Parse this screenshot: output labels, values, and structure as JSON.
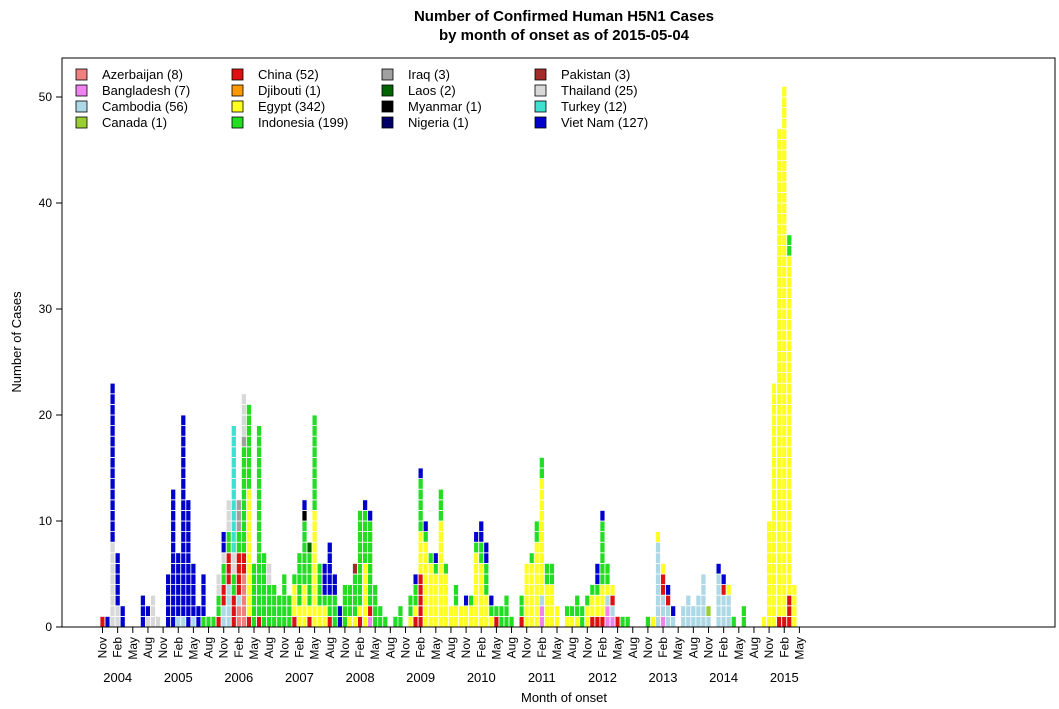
{
  "chart_data": {
    "type": "bar",
    "stacked": true,
    "title_line1": "Number of Confirmed Human H5N1 Cases",
    "title_line2": "by month of onset as of 2015-05-04",
    "xlabel": "Month of onset",
    "ylabel": "Number of Cases",
    "ylim": [
      0,
      55
    ],
    "yticks": [
      0,
      10,
      20,
      30,
      40,
      50
    ],
    "x_start": "2003-11",
    "month_tick_labels": [
      "Nov",
      "Feb",
      "May",
      "Aug"
    ],
    "years": [
      "2004",
      "2005",
      "2006",
      "2007",
      "2008",
      "2009",
      "2010",
      "2011",
      "2012",
      "2013",
      "2014",
      "2015"
    ],
    "grid": false,
    "legend_position": "top-left",
    "countries": [
      {
        "name": "Azerbaijan (8)",
        "color": "#f08080"
      },
      {
        "name": "Bangladesh (7)",
        "color": "#ee82ee"
      },
      {
        "name": "Cambodia (56)",
        "color": "#add8e6"
      },
      {
        "name": "Canada (1)",
        "color": "#9acd32"
      },
      {
        "name": "China (52)",
        "color": "#dd1111"
      },
      {
        "name": "Djibouti (1)",
        "color": "#ff9900"
      },
      {
        "name": "Egypt (342)",
        "color": "#ffff22"
      },
      {
        "name": "Indonesia (199)",
        "color": "#22dd22"
      },
      {
        "name": "Iraq (3)",
        "color": "#a0a0a0"
      },
      {
        "name": "Laos (2)",
        "color": "#006400"
      },
      {
        "name": "Myanmar (1)",
        "color": "#000000"
      },
      {
        "name": "Nigeria (1)",
        "color": "#000066"
      },
      {
        "name": "Pakistan (3)",
        "color": "#a52a2a"
      },
      {
        "name": "Thailand (25)",
        "color": "#d8d8d8"
      },
      {
        "name": "Turkey (12)",
        "color": "#40e0d0"
      },
      {
        "name": "Viet Nam (127)",
        "color": "#0000cd"
      }
    ],
    "monthly": [
      {
        "month": "2003-11",
        "cases": {
          "China (52)": 1
        }
      },
      {
        "month": "2003-12",
        "cases": {
          "Viet Nam (127)": 1
        }
      },
      {
        "month": "2004-01",
        "cases": {
          "Thailand (25)": 8,
          "Viet Nam (127)": 15
        }
      },
      {
        "month": "2004-02",
        "cases": {
          "Thailand (25)": 2,
          "Viet Nam (127)": 5
        }
      },
      {
        "month": "2004-03",
        "cases": {
          "Viet Nam (127)": 2
        }
      },
      {
        "month": "2004-07",
        "cases": {
          "Viet Nam (127)": 3
        }
      },
      {
        "month": "2004-08",
        "cases": {
          "Thailand (25)": 1,
          "Viet Nam (127)": 1
        }
      },
      {
        "month": "2004-09",
        "cases": {
          "Thailand (25)": 3
        }
      },
      {
        "month": "2004-10",
        "cases": {
          "Thailand (25)": 1
        }
      },
      {
        "month": "2004-12",
        "cases": {
          "Viet Nam (127)": 5
        }
      },
      {
        "month": "2005-01",
        "cases": {
          "Viet Nam (127)": 13
        }
      },
      {
        "month": "2005-02",
        "cases": {
          "Cambodia (56)": 1,
          "Viet Nam (127)": 6
        }
      },
      {
        "month": "2005-03",
        "cases": {
          "Cambodia (56)": 1,
          "Viet Nam (127)": 19
        }
      },
      {
        "month": "2005-04",
        "cases": {
          "Viet Nam (127)": 12
        }
      },
      {
        "month": "2005-05",
        "cases": {
          "Cambodia (56)": 1,
          "Viet Nam (127)": 5
        }
      },
      {
        "month": "2005-06",
        "cases": {
          "Viet Nam (127)": 2
        }
      },
      {
        "month": "2005-07",
        "cases": {
          "Indonesia (199)": 1,
          "Viet Nam (127)": 4
        }
      },
      {
        "month": "2005-08",
        "cases": {
          "Indonesia (199)": 1
        }
      },
      {
        "month": "2005-09",
        "cases": {
          "Indonesia (199)": 1
        }
      },
      {
        "month": "2005-10",
        "cases": {
          "China (52)": 1,
          "Thailand (25)": 2,
          "Indonesia (199)": 2
        }
      },
      {
        "month": "2005-11",
        "cases": {
          "China (52)": 2,
          "Thailand (25)": 1,
          "Indonesia (199)": 2,
          "Cambodia (56)": 2,
          "Viet Nam (127)": 2
        }
      },
      {
        "month": "2005-12",
        "cases": {
          "China (52)": 3,
          "Thailand (25)": 3,
          "Indonesia (199)": 2,
          "Cambodia (56)": 4
        }
      },
      {
        "month": "2006-01",
        "cases": {
          "China (52)": 3,
          "Thailand (25)": 2,
          "Turkey (12)": 12,
          "Indonesia (199)": 2
        }
      },
      {
        "month": "2006-02",
        "cases": {
          "China (52)": 4,
          "Azerbaijan (8)": 2,
          "Iraq (3)": 3,
          "Indonesia (199)": 2,
          "Cambodia (56)": 1
        }
      },
      {
        "month": "2006-03",
        "cases": {
          "China (52)": 2,
          "Azerbaijan (8)": 5,
          "Indonesia (199)": 10,
          "Thailand (25)": 4,
          "Iraq (3)": 1
        }
      },
      {
        "month": "2006-04",
        "cases": {
          "China (52)": 1,
          "Egypt (342)": 12,
          "Indonesia (199)": 8
        }
      },
      {
        "month": "2006-05",
        "cases": {
          "Indonesia (199)": 6
        }
      },
      {
        "month": "2006-06",
        "cases": {
          "China (52)": 1,
          "Indonesia (199)": 18
        }
      },
      {
        "month": "2006-07",
        "cases": {
          "Indonesia (199)": 7
        }
      },
      {
        "month": "2006-08",
        "cases": {
          "Thailand (25)": 2,
          "Indonesia (199)": 4
        }
      },
      {
        "month": "2006-09",
        "cases": {
          "Indonesia (199)": 4
        }
      },
      {
        "month": "2006-10",
        "cases": {
          "Indonesia (199)": 3
        }
      },
      {
        "month": "2006-11",
        "cases": {
          "Indonesia (199)": 5
        }
      },
      {
        "month": "2006-12",
        "cases": {
          "Indonesia (199)": 3
        }
      },
      {
        "month": "2007-01",
        "cases": {
          "China (52)": 1,
          "Egypt (342)": 3,
          "Indonesia (199)": 1
        }
      },
      {
        "month": "2007-02",
        "cases": {
          "Egypt (342)": 2,
          "Indonesia (199)": 5
        }
      },
      {
        "month": "2007-03",
        "cases": {
          "Egypt (342)": 4,
          "Indonesia (199)": 6,
          "Myanmar (1)": 1,
          "Viet Nam (127)": 1
        }
      },
      {
        "month": "2007-04",
        "cases": {
          "China (52)": 1,
          "Laos (2)": 1,
          "Egypt (342)": 1,
          "Indonesia (199)": 5
        }
      },
      {
        "month": "2007-05",
        "cases": {
          "Egypt (342)": 11,
          "Indonesia (199)": 9
        }
      },
      {
        "month": "2007-06",
        "cases": {
          "Egypt (342)": 2,
          "Indonesia (199)": 4
        }
      },
      {
        "month": "2007-07",
        "cases": {
          "Egypt (342)": 2,
          "Indonesia (199)": 1,
          "Viet Nam (127)": 3
        }
      },
      {
        "month": "2007-08",
        "cases": {
          "China (52)": 1,
          "Indonesia (199)": 2,
          "Viet Nam (127)": 5
        }
      },
      {
        "month": "2007-09",
        "cases": {
          "Indonesia (199)": 3,
          "Viet Nam (127)": 2
        }
      },
      {
        "month": "2007-10",
        "cases": {
          "Viet Nam (127)": 2
        }
      },
      {
        "month": "2007-11",
        "cases": {
          "Indonesia (199)": 4
        }
      },
      {
        "month": "2007-12",
        "cases": {
          "Egypt (342)": 1,
          "Indonesia (199)": 3
        }
      },
      {
        "month": "2008-01",
        "cases": {
          "Egypt (342)": 1,
          "Indonesia (199)": 4,
          "Pakistan (3)": 1
        }
      },
      {
        "month": "2008-02",
        "cases": {
          "Egypt (342)": 1,
          "China (52)": 1,
          "Indonesia (199)": 9
        }
      },
      {
        "month": "2008-03",
        "cases": {
          "Egypt (342)": 6,
          "Indonesia (199)": 5,
          "Viet Nam (127)": 1
        }
      },
      {
        "month": "2008-04",
        "cases": {
          "China (52)": 1,
          "Bangladesh (7)": 1,
          "Indonesia (199)": 8,
          "Viet Nam (127)": 1
        }
      },
      {
        "month": "2008-05",
        "cases": {
          "Indonesia (199)": 4
        }
      },
      {
        "month": "2008-06",
        "cases": {
          "Indonesia (199)": 2
        }
      },
      {
        "month": "2008-07",
        "cases": {
          "Indonesia (199)": 1
        }
      },
      {
        "month": "2008-09",
        "cases": {
          "Indonesia (199)": 1
        }
      },
      {
        "month": "2008-10",
        "cases": {
          "Indonesia (199)": 2
        }
      },
      {
        "month": "2008-12",
        "cases": {
          "Egypt (342)": 1,
          "Indonesia (199)": 2
        }
      },
      {
        "month": "2009-01",
        "cases": {
          "China (52)": 1,
          "Egypt (342)": 1,
          "Indonesia (199)": 2,
          "Viet Nam (127)": 1
        }
      },
      {
        "month": "2009-02",
        "cases": {
          "China (52)": 5,
          "Egypt (342)": 4,
          "Indonesia (199)": 5,
          "Viet Nam (127)": 1
        }
      },
      {
        "month": "2009-03",
        "cases": {
          "Egypt (342)": 8,
          "Indonesia (199)": 1,
          "Viet Nam (127)": 1
        }
      },
      {
        "month": "2009-04",
        "cases": {
          "Egypt (342)": 6,
          "Indonesia (199)": 1
        }
      },
      {
        "month": "2009-05",
        "cases": {
          "Egypt (342)": 5,
          "Viet Nam (127)": 1,
          "Indonesia (199)": 1
        }
      },
      {
        "month": "2009-06",
        "cases": {
          "Egypt (342)": 10,
          "Indonesia (199)": 3
        }
      },
      {
        "month": "2009-07",
        "cases": {
          "Egypt (342)": 5,
          "Indonesia (199)": 1
        }
      },
      {
        "month": "2009-08",
        "cases": {
          "Egypt (342)": 2
        }
      },
      {
        "month": "2009-09",
        "cases": {
          "Egypt (342)": 2,
          "Indonesia (199)": 2
        }
      },
      {
        "month": "2009-10",
        "cases": {
          "Egypt (342)": 2
        }
      },
      {
        "month": "2009-11",
        "cases": {
          "Egypt (342)": 2,
          "Viet Nam (127)": 1
        }
      },
      {
        "month": "2009-12",
        "cases": {
          "Egypt (342)": 2,
          "Indonesia (199)": 1
        }
      },
      {
        "month": "2010-01",
        "cases": {
          "Egypt (342)": 7,
          "Indonesia (199)": 1,
          "Viet Nam (127)": 1
        }
      },
      {
        "month": "2010-02",
        "cases": {
          "Egypt (342)": 6,
          "Indonesia (199)": 2,
          "Viet Nam (127)": 2
        }
      },
      {
        "month": "2010-03",
        "cases": {
          "Egypt (342)": 3,
          "Indonesia (199)": 3,
          "Viet Nam (127)": 2
        }
      },
      {
        "month": "2010-04",
        "cases": {
          "Egypt (342)": 1,
          "Indonesia (199)": 1,
          "Viet Nam (127)": 1
        }
      },
      {
        "month": "2010-05",
        "cases": {
          "China (52)": 1,
          "Indonesia (199)": 1
        }
      },
      {
        "month": "2010-06",
        "cases": {
          "Indonesia (199)": 2
        }
      },
      {
        "month": "2010-07",
        "cases": {
          "Indonesia (199)": 3
        }
      },
      {
        "month": "2010-08",
        "cases": {
          "Indonesia (199)": 1
        }
      },
      {
        "month": "2010-10",
        "cases": {
          "China (52)": 1,
          "Indonesia (199)": 2
        }
      },
      {
        "month": "2010-11",
        "cases": {
          "Egypt (342)": 6
        }
      },
      {
        "month": "2010-12",
        "cases": {
          "Egypt (342)": 6,
          "Indonesia (199)": 1
        }
      },
      {
        "month": "2011-01",
        "cases": {
          "Egypt (342)": 8,
          "Indonesia (199)": 2
        }
      },
      {
        "month": "2011-02",
        "cases": {
          "Bangladesh (7)": 2,
          "Cambodia (56)": 1,
          "Egypt (342)": 11,
          "Indonesia (199)": 2
        }
      },
      {
        "month": "2011-03",
        "cases": {
          "Egypt (342)": 4,
          "Indonesia (199)": 2
        }
      },
      {
        "month": "2011-04",
        "cases": {
          "Egypt (342)": 4,
          "Indonesia (199)": 2
        }
      },
      {
        "month": "2011-05",
        "cases": {
          "Egypt (342)": 2
        }
      },
      {
        "month": "2011-07",
        "cases": {
          "Egypt (342)": 1,
          "Indonesia (199)": 1
        }
      },
      {
        "month": "2011-08",
        "cases": {
          "Egypt (342)": 1,
          "Indonesia (199)": 1
        }
      },
      {
        "month": "2011-09",
        "cases": {
          "Egypt (342)": 1,
          "Indonesia (199)": 2
        }
      },
      {
        "month": "2011-10",
        "cases": {
          "Indonesia (199)": 2
        }
      },
      {
        "month": "2011-11",
        "cases": {
          "Egypt (342)": 2,
          "Indonesia (199)": 1
        }
      },
      {
        "month": "2011-12",
        "cases": {
          "China (52)": 1,
          "Egypt (342)": 2,
          "Indonesia (199)": 1
        }
      },
      {
        "month": "2012-01",
        "cases": {
          "China (52)": 1,
          "Egypt (342)": 2,
          "Indonesia (199)": 1,
          "Viet Nam (127)": 2
        }
      },
      {
        "month": "2012-02",
        "cases": {
          "China (52)": 1,
          "Egypt (342)": 3,
          "Indonesia (199)": 6,
          "Viet Nam (127)": 1
        }
      },
      {
        "month": "2012-03",
        "cases": {
          "Bangladesh (7)": 2,
          "Cambodia (56)": 1,
          "Egypt (342)": 1,
          "Indonesia (199)": 2
        }
      },
      {
        "month": "2012-04",
        "cases": {
          "Bangladesh (7)": 1,
          "Cambodia (56)": 1,
          "China (52)": 1,
          "Egypt (342)": 1
        }
      },
      {
        "month": "2012-05",
        "cases": {
          "China (52)": 1
        }
      },
      {
        "month": "2012-06",
        "cases": {
          "Indonesia (199)": 1
        }
      },
      {
        "month": "2012-07",
        "cases": {
          "Indonesia (199)": 1
        }
      },
      {
        "month": "2012-11",
        "cases": {
          "Indonesia (199)": 1
        }
      },
      {
        "month": "2012-12",
        "cases": {
          "Egypt (342)": 1
        }
      },
      {
        "month": "2013-01",
        "cases": {
          "Cambodia (56)": 8,
          "Egypt (342)": 1
        }
      },
      {
        "month": "2013-02",
        "cases": {
          "Cambodia (56)": 2,
          "Bangladesh (7)": 1,
          "China (52)": 2,
          "Egypt (342)": 1
        }
      },
      {
        "month": "2013-03",
        "cases": {
          "Cambodia (56)": 2,
          "China (52)": 1,
          "Viet Nam (127)": 1
        }
      },
      {
        "month": "2013-04",
        "cases": {
          "Cambodia (56)": 1,
          "Viet Nam (127)": 1
        }
      },
      {
        "month": "2013-06",
        "cases": {
          "Cambodia (56)": 2
        }
      },
      {
        "month": "2013-07",
        "cases": {
          "Cambodia (56)": 3
        }
      },
      {
        "month": "2013-08",
        "cases": {
          "Cambodia (56)": 2
        }
      },
      {
        "month": "2013-09",
        "cases": {
          "Cambodia (56)": 3
        }
      },
      {
        "month": "2013-10",
        "cases": {
          "Cambodia (56)": 5
        }
      },
      {
        "month": "2013-11",
        "cases": {
          "Canada (1)": 1,
          "Cambodia (56)": 1
        }
      },
      {
        "month": "2014-01",
        "cases": {
          "Cambodia (56)": 5,
          "Viet Nam (127)": 1
        }
      },
      {
        "month": "2014-02",
        "cases": {
          "Cambodia (56)": 3,
          "China (52)": 1,
          "Viet Nam (127)": 1
        }
      },
      {
        "month": "2014-03",
        "cases": {
          "Cambodia (56)": 3,
          "Egypt (342)": 1
        }
      },
      {
        "month": "2014-04",
        "cases": {
          "Indonesia (199)": 1
        }
      },
      {
        "month": "2014-06",
        "cases": {
          "Indonesia (199)": 2
        }
      },
      {
        "month": "2014-10",
        "cases": {
          "Egypt (342)": 1
        }
      },
      {
        "month": "2014-11",
        "cases": {
          "Egypt (342)": 10
        }
      },
      {
        "month": "2014-12",
        "cases": {
          "Egypt (342)": 23
        }
      },
      {
        "month": "2015-01",
        "cases": {
          "China (52)": 1,
          "Egypt (342)": 46
        }
      },
      {
        "month": "2015-02",
        "cases": {
          "China (52)": 1,
          "Egypt (342)": 50
        }
      },
      {
        "month": "2015-03",
        "cases": {
          "China (52)": 3,
          "Egypt (342)": 32,
          "Indonesia (199)": 2
        }
      },
      {
        "month": "2015-04",
        "cases": {
          "Egypt (342)": 4
        }
      }
    ]
  }
}
